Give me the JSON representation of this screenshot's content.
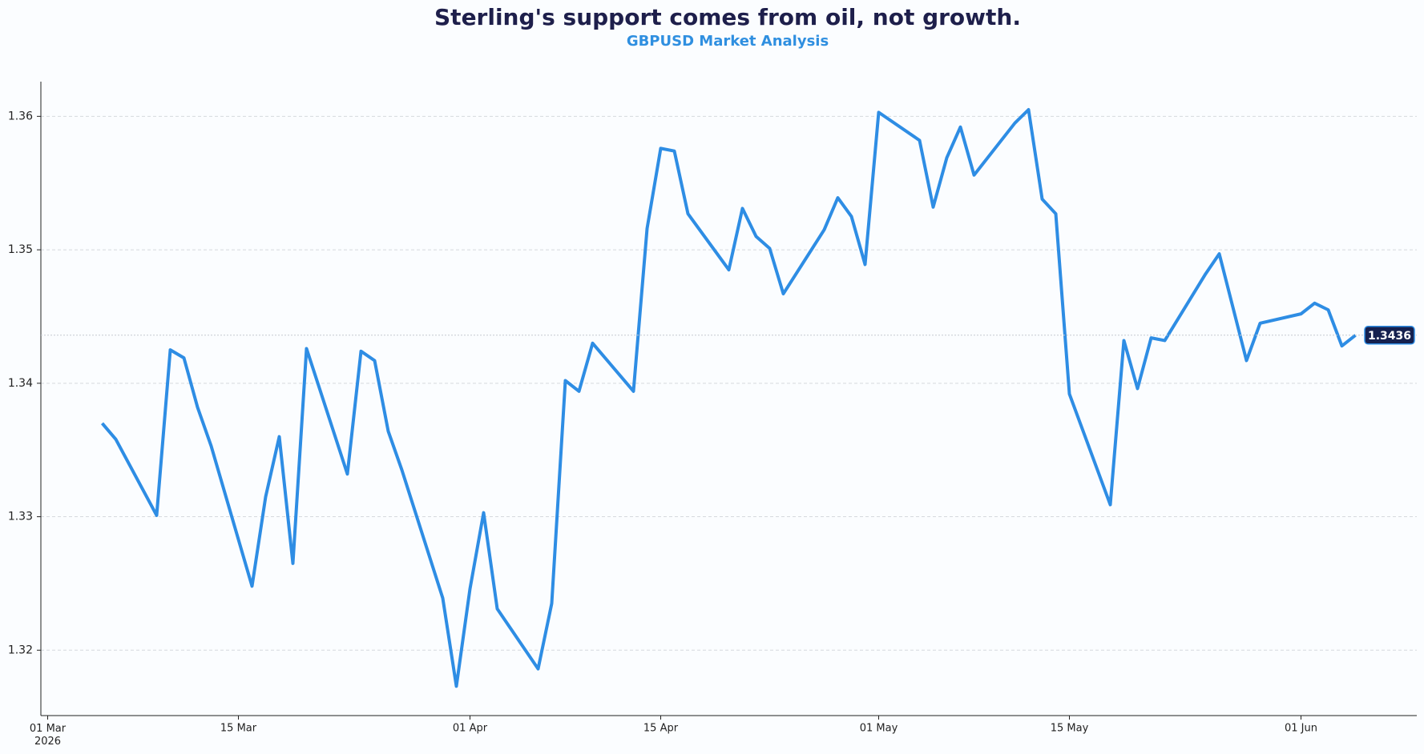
{
  "chart_data": {
    "type": "line",
    "title": "Sterling's support comes from oil, not growth.",
    "subtitle": "GBPUSD Market Analysis",
    "x": [
      "2026-03-05",
      "2026-03-06",
      "2026-03-09",
      "2026-03-10",
      "2026-03-11",
      "2026-03-12",
      "2026-03-13",
      "2026-03-16",
      "2026-03-17",
      "2026-03-18",
      "2026-03-19",
      "2026-03-20",
      "2026-03-23",
      "2026-03-24",
      "2026-03-25",
      "2026-03-26",
      "2026-03-27",
      "2026-03-30",
      "2026-03-31",
      "2026-04-01",
      "2026-04-02",
      "2026-04-03",
      "2026-04-06",
      "2026-04-07",
      "2026-04-08",
      "2026-04-09",
      "2026-04-10",
      "2026-04-13",
      "2026-04-14",
      "2026-04-15",
      "2026-04-16",
      "2026-04-17",
      "2026-04-20",
      "2026-04-21",
      "2026-04-22",
      "2026-04-23",
      "2026-04-24",
      "2026-04-27",
      "2026-04-28",
      "2026-04-29",
      "2026-04-30",
      "2026-05-01",
      "2026-05-04",
      "2026-05-05",
      "2026-05-06",
      "2026-05-07",
      "2026-05-08",
      "2026-05-11",
      "2026-05-12",
      "2026-05-13",
      "2026-05-14",
      "2026-05-15",
      "2026-05-18",
      "2026-05-19",
      "2026-05-20",
      "2026-05-21",
      "2026-05-22",
      "2026-05-25",
      "2026-05-26",
      "2026-05-28",
      "2026-05-29",
      "2026-06-01",
      "2026-06-02",
      "2026-06-03",
      "2026-06-04",
      "2026-06-05"
    ],
    "series": [
      {
        "name": "GBPUSD",
        "color": "#2e8de4",
        "values": [
          1.337,
          1.3358,
          1.3301,
          1.3425,
          1.3419,
          1.3382,
          1.3353,
          1.3248,
          1.3315,
          1.336,
          1.3265,
          1.3426,
          1.3332,
          1.3424,
          1.3417,
          1.3364,
          1.3335,
          1.3239,
          1.3173,
          1.3246,
          1.3303,
          1.3231,
          1.3186,
          1.3235,
          1.3402,
          1.3394,
          1.343,
          1.3394,
          1.3516,
          1.3576,
          1.3574,
          1.3527,
          1.3485,
          1.3531,
          1.351,
          1.3501,
          1.3467,
          1.3515,
          1.3539,
          1.3525,
          1.3489,
          1.3603,
          1.3582,
          1.3532,
          1.3569,
          1.3592,
          1.3556,
          1.3595,
          1.3605,
          1.3538,
          1.3527,
          1.3392,
          1.3309,
          1.3432,
          1.3396,
          1.3434,
          1.3432,
          1.3482,
          1.3497,
          1.3417,
          1.3445,
          1.3452,
          1.346,
          1.3455,
          1.3428,
          1.3436
        ]
      }
    ],
    "last_value_label": "1.3436",
    "xlim": [
      "2026-02-28T12:00Z",
      "2026-06-09T12:00Z"
    ],
    "xticks": [
      {
        "value": "2026-03-01",
        "label": "01 Mar\n2026"
      },
      {
        "value": "2026-03-15",
        "label": "15 Mar"
      },
      {
        "value": "2026-04-01",
        "label": "01 Apr"
      },
      {
        "value": "2026-04-15",
        "label": "15 Apr"
      },
      {
        "value": "2026-05-01",
        "label": "01 May"
      },
      {
        "value": "2026-05-15",
        "label": "15 May"
      },
      {
        "value": "2026-06-01",
        "label": "01 Jun"
      }
    ],
    "ylim": [
      1.3151,
      1.3626
    ],
    "yticks": [
      1.32,
      1.33,
      1.34,
      1.35,
      1.36
    ],
    "grid": true
  }
}
